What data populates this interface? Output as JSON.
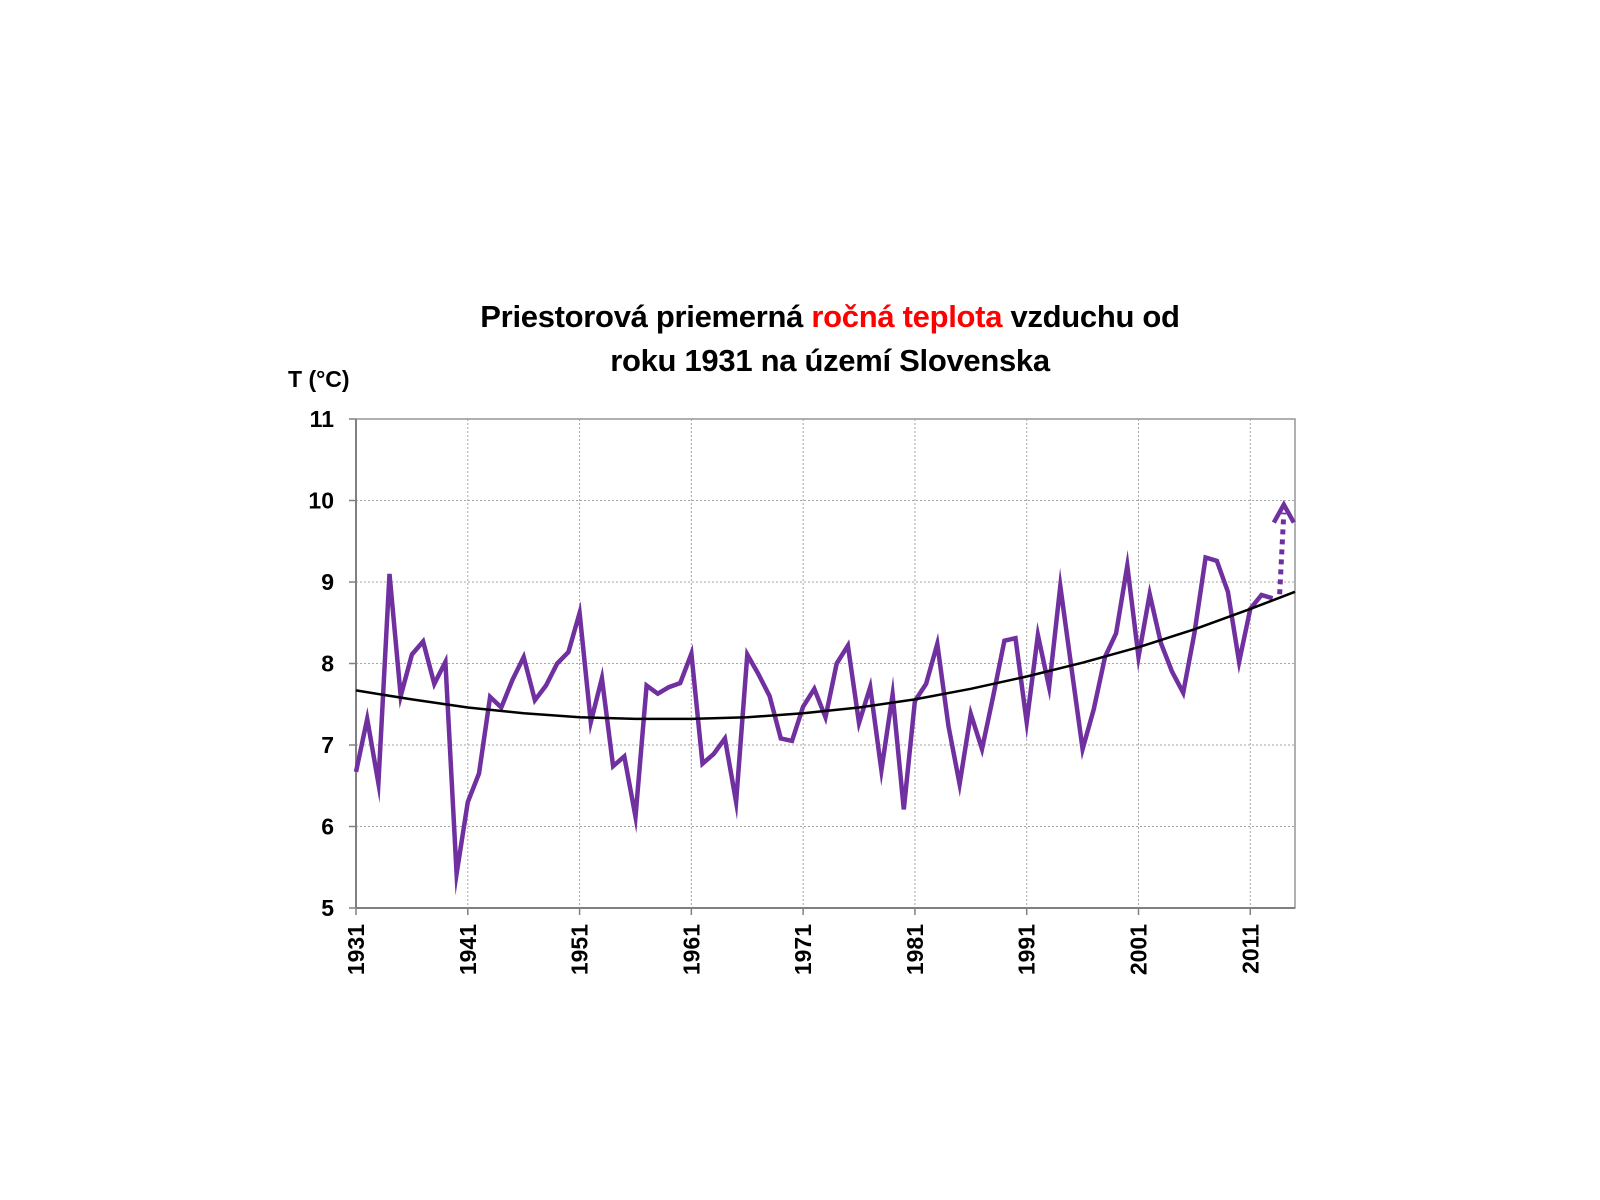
{
  "chart_data": {
    "type": "line",
    "title_parts": [
      {
        "text": "Priestorová priemerná ",
        "highlight": false
      },
      {
        "text": "ročná teplota",
        "highlight": true
      },
      {
        "text": " vzduchu od",
        "highlight": false
      }
    ],
    "title_line2": "roku 1931 na území Slovenska",
    "title_full": "Priestorová priemerná ročná teplota vzduchu od roku 1931 na území Slovenska",
    "ylabel": "T (°C)",
    "xlabel": "",
    "ylim": [
      5,
      11
    ],
    "xlim": [
      1931,
      2015
    ],
    "yticks": [
      5,
      6,
      7,
      8,
      9,
      10,
      11
    ],
    "xticks": [
      1931,
      1941,
      1951,
      1961,
      1971,
      1981,
      1991,
      2001,
      2011
    ],
    "grid": true,
    "colors": {
      "series": "#7030a0",
      "trend": "#000000",
      "highlight": "#ff0000"
    },
    "series": [
      {
        "name": "Annual mean air temperature",
        "x": [
          1931,
          1932,
          1933,
          1934,
          1935,
          1936,
          1937,
          1938,
          1939,
          1940,
          1941,
          1942,
          1943,
          1944,
          1945,
          1946,
          1947,
          1948,
          1949,
          1950,
          1951,
          1952,
          1953,
          1954,
          1955,
          1956,
          1957,
          1958,
          1959,
          1960,
          1961,
          1962,
          1963,
          1964,
          1965,
          1966,
          1967,
          1968,
          1969,
          1970,
          1971,
          1972,
          1973,
          1974,
          1975,
          1976,
          1977,
          1978,
          1979,
          1980,
          1981,
          1982,
          1983,
          1984,
          1985,
          1986,
          1987,
          1988,
          1989,
          1990,
          1991,
          1992,
          1993,
          1994,
          1995,
          1996,
          1997,
          1998,
          1999,
          2000,
          2001,
          2002,
          2003,
          2004,
          2005,
          2006,
          2007,
          2008,
          2009,
          2010,
          2011,
          2012,
          2013
        ],
        "values": [
          6.67,
          7.32,
          6.53,
          9.1,
          7.6,
          8.11,
          8.27,
          7.75,
          8.02,
          5.42,
          6.3,
          6.65,
          7.59,
          7.46,
          7.8,
          8.08,
          7.55,
          7.73,
          8.0,
          8.14,
          8.62,
          7.28,
          7.82,
          6.74,
          6.86,
          6.12,
          7.73,
          7.63,
          7.71,
          7.76,
          8.12,
          6.77,
          6.89,
          7.08,
          6.3,
          8.11,
          7.87,
          7.6,
          7.08,
          7.05,
          7.47,
          7.69,
          7.34,
          8.0,
          8.22,
          7.27,
          7.71,
          6.69,
          7.62,
          6.21,
          7.54,
          7.75,
          8.24,
          7.23,
          6.52,
          7.38,
          6.95,
          7.6,
          8.28,
          8.31,
          7.28,
          8.35,
          7.71,
          8.95,
          7.95,
          6.95,
          7.44,
          8.08,
          8.37,
          9.2,
          8.08,
          8.85,
          8.25,
          7.9,
          7.64,
          8.37,
          9.3,
          9.26,
          8.88,
          8.02,
          8.67,
          8.84,
          8.8
        ]
      },
      {
        "name": "Projection (dotted arrow)",
        "style": "dotted-arrow",
        "x": [
          2013,
          2014
        ],
        "values": [
          8.8,
          9.95
        ]
      },
      {
        "name": "Polynomial trend",
        "style": "trend",
        "x": [
          1931,
          1936,
          1941,
          1946,
          1951,
          1956,
          1961,
          1966,
          1971,
          1976,
          1981,
          1986,
          1991,
          1996,
          2001,
          2006,
          2011,
          2015
        ],
        "values": [
          7.67,
          7.56,
          7.46,
          7.39,
          7.34,
          7.32,
          7.32,
          7.34,
          7.39,
          7.46,
          7.56,
          7.69,
          7.84,
          8.01,
          8.2,
          8.42,
          8.67,
          8.88
        ]
      }
    ]
  }
}
